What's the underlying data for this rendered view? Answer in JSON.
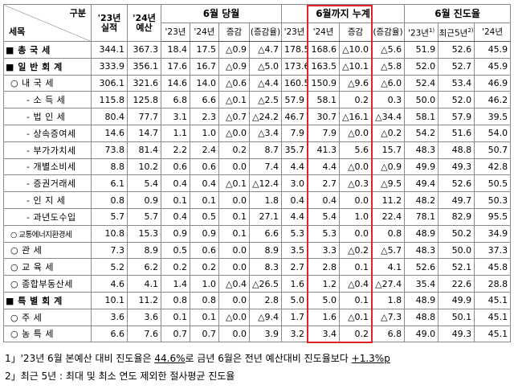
{
  "header": {
    "corner_top": "구분",
    "corner_bottom": "세목",
    "actual": "'23년 실적",
    "budget": "'24년 예산",
    "groups": [
      "6월 당월",
      "6월까지 누계",
      "6월 진도율"
    ],
    "sub": [
      "'23년",
      "'24년",
      "증감",
      "(증감율)",
      "'23년",
      "'24년",
      "증감",
      "(증감율)"
    ],
    "progress": [
      {
        "text": "'23년",
        "note": "1)"
      },
      {
        "text": "최근5년",
        "note": "2)"
      },
      {
        "text": "'24년"
      }
    ]
  },
  "rows": [
    [
      "■ 총 국 세",
      "344.1",
      "367.3",
      "18.4",
      "17.5",
      "△0.9",
      "△4.7",
      "178.5",
      "168.6",
      "△10.0",
      "△5.6",
      "51.9",
      "52.6",
      "45.9"
    ],
    [
      "■ 일 반 회 계",
      "333.9",
      "356.1",
      "17.6",
      "16.7",
      "△0.9",
      "△5.0",
      "173.6",
      "163.5",
      "△10.1",
      "△5.8",
      "52.0",
      "52.7",
      "45.9"
    ],
    [
      "○ 내 국 세",
      "306.1",
      "321.6",
      "14.6",
      "14.0",
      "△0.6",
      "△4.4",
      "160.5",
      "150.9",
      "△9.6",
      "△6.0",
      "52.4",
      "53.4",
      "46.9"
    ],
    [
      "- 소 득 세",
      "115.8",
      "125.8",
      "6.8",
      "6.6",
      "△0.1",
      "△2.5",
      "57.9",
      "58.1",
      "0.2",
      "0.3",
      "50.0",
      "52.0",
      "46.2"
    ],
    [
      "- 법 인 세",
      "80.4",
      "77.7",
      "3.1",
      "2.3",
      "△0.7",
      "△24.2",
      "46.7",
      "30.7",
      "△16.1",
      "△34.4",
      "58.1",
      "57.9",
      "39.5"
    ],
    [
      "- 상속증여세",
      "14.6",
      "14.7",
      "1.1",
      "1.0",
      "△0.0",
      "△3.4",
      "7.9",
      "7.9",
      "△0.0",
      "△0.2",
      "54.2",
      "51.6",
      "54.0"
    ],
    [
      "- 부가가치세",
      "73.8",
      "81.4",
      "2.2",
      "2.4",
      "0.2",
      "8.7",
      "35.7",
      "41.3",
      "5.6",
      "15.7",
      "48.3",
      "48.8",
      "50.7"
    ],
    [
      "- 개별소비세",
      "8.8",
      "10.2",
      "0.6",
      "0.6",
      "0.0",
      "7.4",
      "4.4",
      "4.4",
      "△0.0",
      "△0.9",
      "49.9",
      "49.3",
      "42.8"
    ],
    [
      "- 증권거래세",
      "6.1",
      "5.4",
      "0.4",
      "0.4",
      "△0.1",
      "△12.4",
      "3.0",
      "2.7",
      "△0.3",
      "△9.5",
      "49.4",
      "52.6",
      "50.5"
    ],
    [
      "- 인 지 세",
      "0.8",
      "0.9",
      "0.1",
      "0.1",
      "0.0",
      "1.8",
      "0.4",
      "0.4",
      "0.0",
      "11.2",
      "48.2",
      "49.7",
      "50.3"
    ],
    [
      "- 과년도수입",
      "5.7",
      "5.7",
      "0.4",
      "0.5",
      "0.1",
      "27.1",
      "4.4",
      "5.4",
      "1.0",
      "22.4",
      "78.1",
      "82.9",
      "95.5"
    ],
    [
      "○ 교통에너지환경세",
      "10.8",
      "15.3",
      "0.9",
      "0.9",
      "0.1",
      "6.6",
      "5.3",
      "5.3",
      "0.0",
      "0.8",
      "48.9",
      "50.2",
      "34.9"
    ],
    [
      "○ 관 세",
      "7.3",
      "8.9",
      "0.5",
      "0.6",
      "0.0",
      "8.9",
      "3.5",
      "3.3",
      "△0.2",
      "△5.7",
      "48.3",
      "50.0",
      "37.3"
    ],
    [
      "○ 교 육 세",
      "5.2",
      "6.2",
      "0.2",
      "0.2",
      "0.0",
      "8.3",
      "2.7",
      "2.8",
      "0.1",
      "4.1",
      "52.6",
      "52.1",
      "45.8"
    ],
    [
      "○ 종합부동산세",
      "4.6",
      "4.1",
      "1.4",
      "1.0",
      "△0.4",
      "△26.5",
      "1.6",
      "1.2",
      "△0.4",
      "△27.4",
      "35.4",
      "22.6",
      "28.8"
    ],
    [
      "■ 특 별 회 계",
      "10.1",
      "11.2",
      "0.8",
      "0.8",
      "0.0",
      "2.8",
      "5.0",
      "5.0",
      "0.1",
      "1.8",
      "48.9",
      "49.9",
      "45.1"
    ],
    [
      "○ 주 세",
      "3.6",
      "3.6",
      "0.1",
      "0.1",
      "△0.0",
      "△9.4",
      "1.7",
      "1.6",
      "△0.1",
      "△7.3",
      "48.8",
      "50.1",
      "45.1"
    ],
    [
      "○ 농 특 세",
      "6.6",
      "7.6",
      "0.7",
      "0.7",
      "0.0",
      "3.9",
      "3.2",
      "3.4",
      "0.2",
      "6.8",
      "49.0",
      "49.3",
      "45.1"
    ]
  ],
  "footnotes": [
    [
      "1」'23년 6월 본예산 대비 진도율은 ",
      "44.6%",
      "로 금년 6월은 전년 예산대비 진도율보다 ",
      "+1.3%p"
    ],
    [
      "2」최근 5년 : 최대 및 최소 연도 제외한 절사평균 진도율"
    ]
  ]
}
